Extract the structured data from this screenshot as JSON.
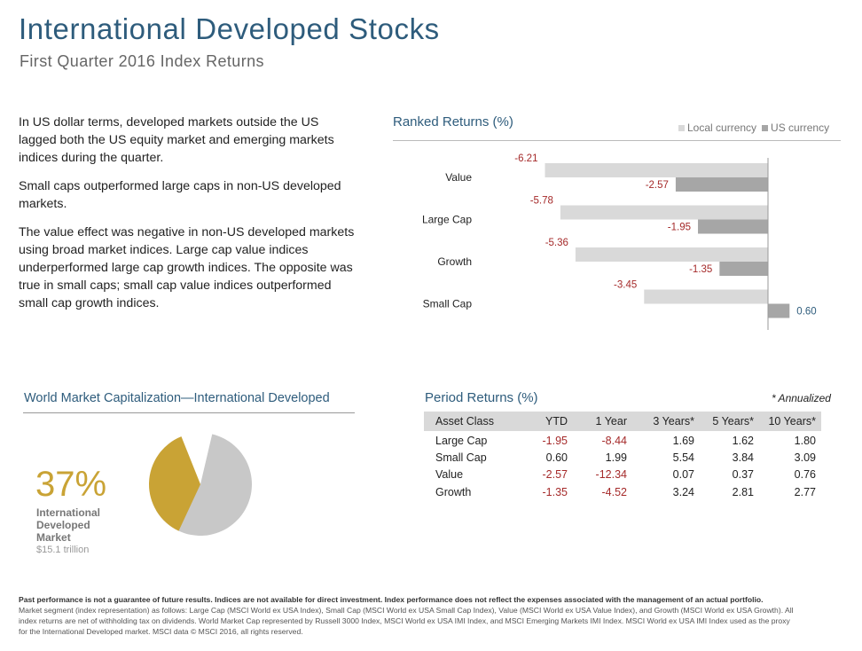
{
  "header": {
    "title": "International Developed Stocks",
    "subtitle": "First Quarter 2016 Index Returns"
  },
  "body": {
    "p1": "In US dollar terms, developed markets outside the US lagged both the US equity market and emerging markets indices during the quarter.",
    "p2": "Small caps outperformed large caps in non-US developed markets.",
    "p3": "The value effect was negative in non-US developed markets using broad market indices. Large cap value indices underperformed large cap growth indices. The opposite was true in small caps; small cap value indices outperformed small cap growth indices."
  },
  "ranked": {
    "title": "Ranked Returns (%)",
    "legend_local": "Local currency",
    "legend_us": "US currency",
    "colors": {
      "local": "#d9d9d9",
      "us": "#a6a6a6",
      "negative_label": "#a52a2a",
      "positive_label": "#2e5c7c"
    }
  },
  "chart_data": {
    "type": "bar",
    "orientation": "horizontal",
    "title": "Ranked Returns (%)",
    "categories": [
      "Value",
      "Large Cap",
      "Growth",
      "Small Cap"
    ],
    "series": [
      {
        "name": "Local currency",
        "values": [
          -6.21,
          -5.78,
          -5.36,
          -3.45
        ]
      },
      {
        "name": "US currency",
        "values": [
          -2.57,
          -1.95,
          -1.35,
          0.6
        ]
      }
    ],
    "legend_position": "top-right"
  },
  "wmc": {
    "title": "World Market Capitalization—International  Developed",
    "percent_label": "37%",
    "label": "International Developed Market",
    "value": "$15.1 trillion",
    "share": 0.37,
    "colors": {
      "highlight": "#c9a335",
      "rest": "#c8c8c8"
    }
  },
  "period": {
    "title": "Period Returns (%)",
    "note": "* Annualized",
    "headers": [
      "Asset Class",
      "YTD",
      "1 Year",
      "3 Years*",
      "5 Years*",
      "10 Years*"
    ],
    "rows": [
      [
        "Large Cap",
        "-1.95",
        "-8.44",
        "1.69",
        "1.62",
        "1.80"
      ],
      [
        "Small Cap",
        "0.60",
        "1.99",
        "5.54",
        "3.84",
        "3.09"
      ],
      [
        "Value",
        "-2.57",
        "-12.34",
        "0.07",
        "0.37",
        "0.76"
      ],
      [
        "Growth",
        "-1.35",
        "-4.52",
        "3.24",
        "2.81",
        "2.77"
      ]
    ]
  },
  "footer": {
    "bold": "Past performance is not a guarantee of future results. Indices are not available for direct investment. Index performance does not reflect the expenses associated with the management of an actual portfolio.",
    "text": "Market segment (index representation) as follows: Large Cap (MSCI World ex USA Index), Small Cap (MSCI World ex USA Small Cap Index), Value (MSCI World ex USA Value Index), and Growth (MSCI World ex USA Growth). All index returns are net of withholding tax on dividends. World Market Cap represented by Russell 3000 Index, MSCI World ex USA IMI Index, and MSCI Emerging Markets IMI Index. MSCI World ex USA IMI Index used as the proxy for the International Developed market. MSCI data © MSCI 2016, all rights reserved."
  }
}
